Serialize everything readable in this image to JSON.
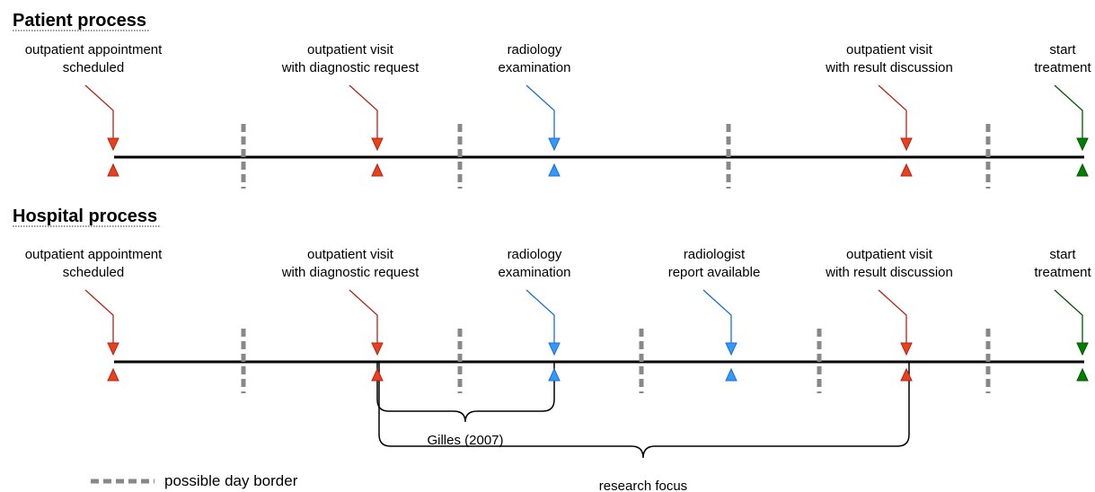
{
  "patient": {
    "title": "Patient process",
    "events": [
      {
        "label": [
          "outpatient appointment",
          "scheduled"
        ],
        "color": "#e8421c"
      },
      {
        "label": [
          "outpatient visit",
          "with diagnostic request"
        ],
        "color": "#e8421c"
      },
      {
        "label": [
          "radiology",
          "examination"
        ],
        "color": "#3399ff"
      },
      {
        "label": [
          "outpatient visit",
          "with result discussion"
        ],
        "color": "#e8421c"
      },
      {
        "label": [
          "start",
          "treatment"
        ],
        "color": "#008000"
      }
    ]
  },
  "hospital": {
    "title": "Hospital process",
    "events": [
      {
        "label": [
          "outpatient appointment",
          "scheduled"
        ],
        "color": "#e8421c"
      },
      {
        "label": [
          "outpatient visit",
          "with diagnostic request"
        ],
        "color": "#e8421c"
      },
      {
        "label": [
          "radiology",
          "examination"
        ],
        "color": "#3399ff"
      },
      {
        "label": [
          "radiologist",
          "report available"
        ],
        "color": "#3399ff"
      },
      {
        "label": [
          "outpatient visit",
          "with result discussion"
        ],
        "color": "#e8421c"
      },
      {
        "label": [
          "start",
          "treatment"
        ],
        "color": "#008000"
      }
    ]
  },
  "braces": [
    "Gilles (2007)",
    "research focus"
  ],
  "legend": "possible day border"
}
